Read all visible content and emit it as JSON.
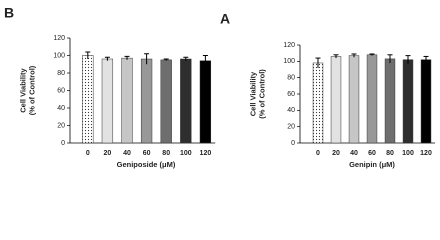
{
  "chart_data": [
    {
      "type": "bar",
      "panel": "B",
      "y_label": [
        "Cell Viability",
        "(% of Control)"
      ],
      "x_label": "Geniposide (μM)",
      "categories": [
        "0",
        "20",
        "40",
        "60",
        "80",
        "100",
        "120"
      ],
      "values": [
        100,
        96,
        97,
        96,
        95,
        96,
        94
      ],
      "errors": [
        4,
        2,
        2,
        6,
        1,
        2,
        6
      ],
      "colors": [
        "dotted",
        "#e2e2e2",
        "#c6c6c6",
        "#989898",
        "#6e6e6e",
        "#2e2e2e",
        "#000000"
      ],
      "ylim": [
        0,
        120
      ],
      "yticks": [
        0,
        20,
        40,
        60,
        80,
        100,
        120
      ]
    },
    {
      "type": "bar",
      "panel": "A",
      "y_label": [
        "Cell Viability",
        "(% of Control)"
      ],
      "x_label": "Genipin (μM)",
      "categories": [
        "0",
        "20",
        "40",
        "60",
        "80",
        "100",
        "120"
      ],
      "values": [
        98,
        106,
        107,
        108,
        103,
        102,
        102
      ],
      "errors": [
        6,
        2,
        2,
        1,
        5,
        5,
        4
      ],
      "colors": [
        "dotted",
        "#e2e2e2",
        "#c6c6c6",
        "#989898",
        "#6e6e6e",
        "#2e2e2e",
        "#000000"
      ],
      "ylim": [
        0,
        120
      ],
      "yticks": [
        0,
        20,
        40,
        60,
        80,
        100,
        120
      ]
    }
  ]
}
